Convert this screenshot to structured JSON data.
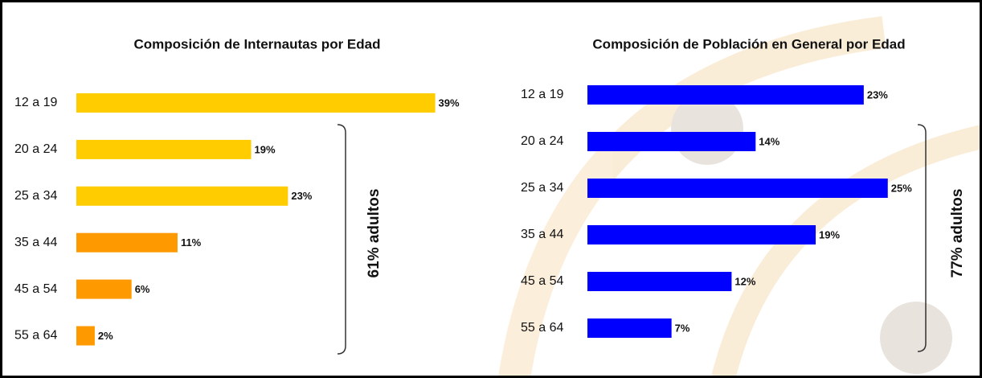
{
  "chart_data": [
    {
      "type": "bar",
      "orientation": "horizontal",
      "title": "Composición de Internautas por Edad",
      "categories": [
        "12 a 19",
        "20 a 24",
        "25 a 34",
        "35 a 44",
        "45 a 54",
        "55 a 64"
      ],
      "values": [
        39,
        19,
        23,
        11,
        6,
        2
      ],
      "value_labels": [
        "39%",
        "19%",
        "23%",
        "11%",
        "6%",
        "2%"
      ],
      "colors": [
        "#ffcc00",
        "#ffcc00",
        "#ffcc00",
        "#ff9900",
        "#ff9900",
        "#ff9900"
      ],
      "annotation": "61% adultos"
    },
    {
      "type": "bar",
      "orientation": "horizontal",
      "title": "Composición de Población en General por Edad",
      "categories": [
        "12 a 19",
        "20 a 24",
        "25 a 34",
        "35 a 44",
        "45 a 54",
        "55 a 64"
      ],
      "values": [
        23,
        14,
        25,
        19,
        12,
        7
      ],
      "value_labels": [
        "23%",
        "14%",
        "25%",
        "19%",
        "12%",
        "7%"
      ],
      "colors": [
        "#0000ff",
        "#0000ff",
        "#0000ff",
        "#0000ff",
        "#0000ff",
        "#0000ff"
      ],
      "annotation": "77% adultos"
    }
  ]
}
